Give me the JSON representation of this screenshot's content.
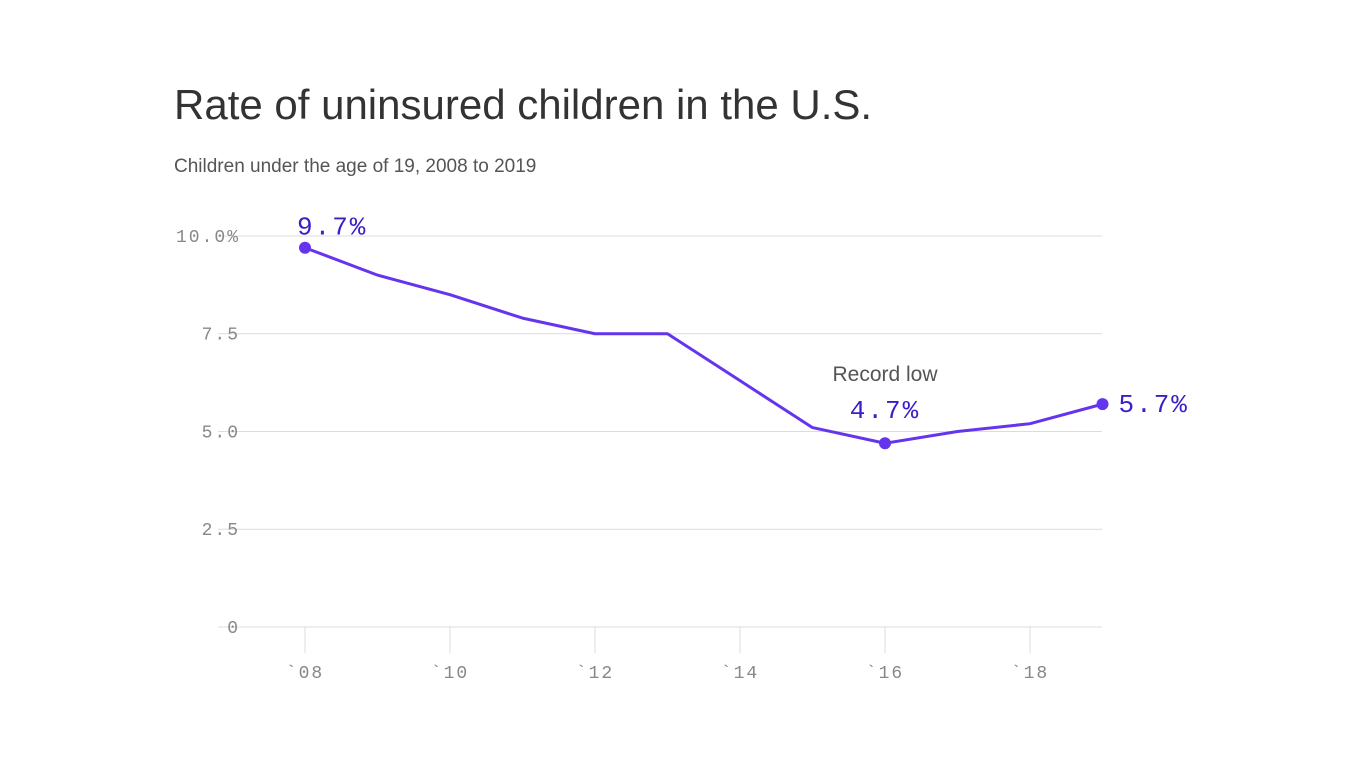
{
  "chart_data": {
    "type": "line",
    "title": "Rate of uninsured children in the U.S.",
    "subtitle": "Children under the age of 19, 2008 to 2019",
    "categories": [
      "`08",
      null,
      "`10",
      null,
      "`12",
      null,
      "`14",
      null,
      "`16",
      null,
      "`18",
      null
    ],
    "values": [
      9.7,
      9.0,
      8.5,
      7.9,
      7.5,
      7.5,
      6.3,
      5.1,
      4.7,
      5.0,
      5.2,
      5.7
    ],
    "value_labels": [
      "9.7%",
      null,
      null,
      null,
      null,
      null,
      null,
      null,
      "4.7%",
      null,
      null,
      "5.7%"
    ],
    "annotation": "Record low",
    "color": "#6535ee",
    "label_color": "#3a1fc9",
    "ylim": [
      0,
      10
    ],
    "yticks": [
      0,
      2.5,
      {
        "value": 5,
        "label": "5.0"
      },
      7.5,
      {
        "value": 10,
        "label": "10.0%"
      }
    ],
    "grid": true
  }
}
